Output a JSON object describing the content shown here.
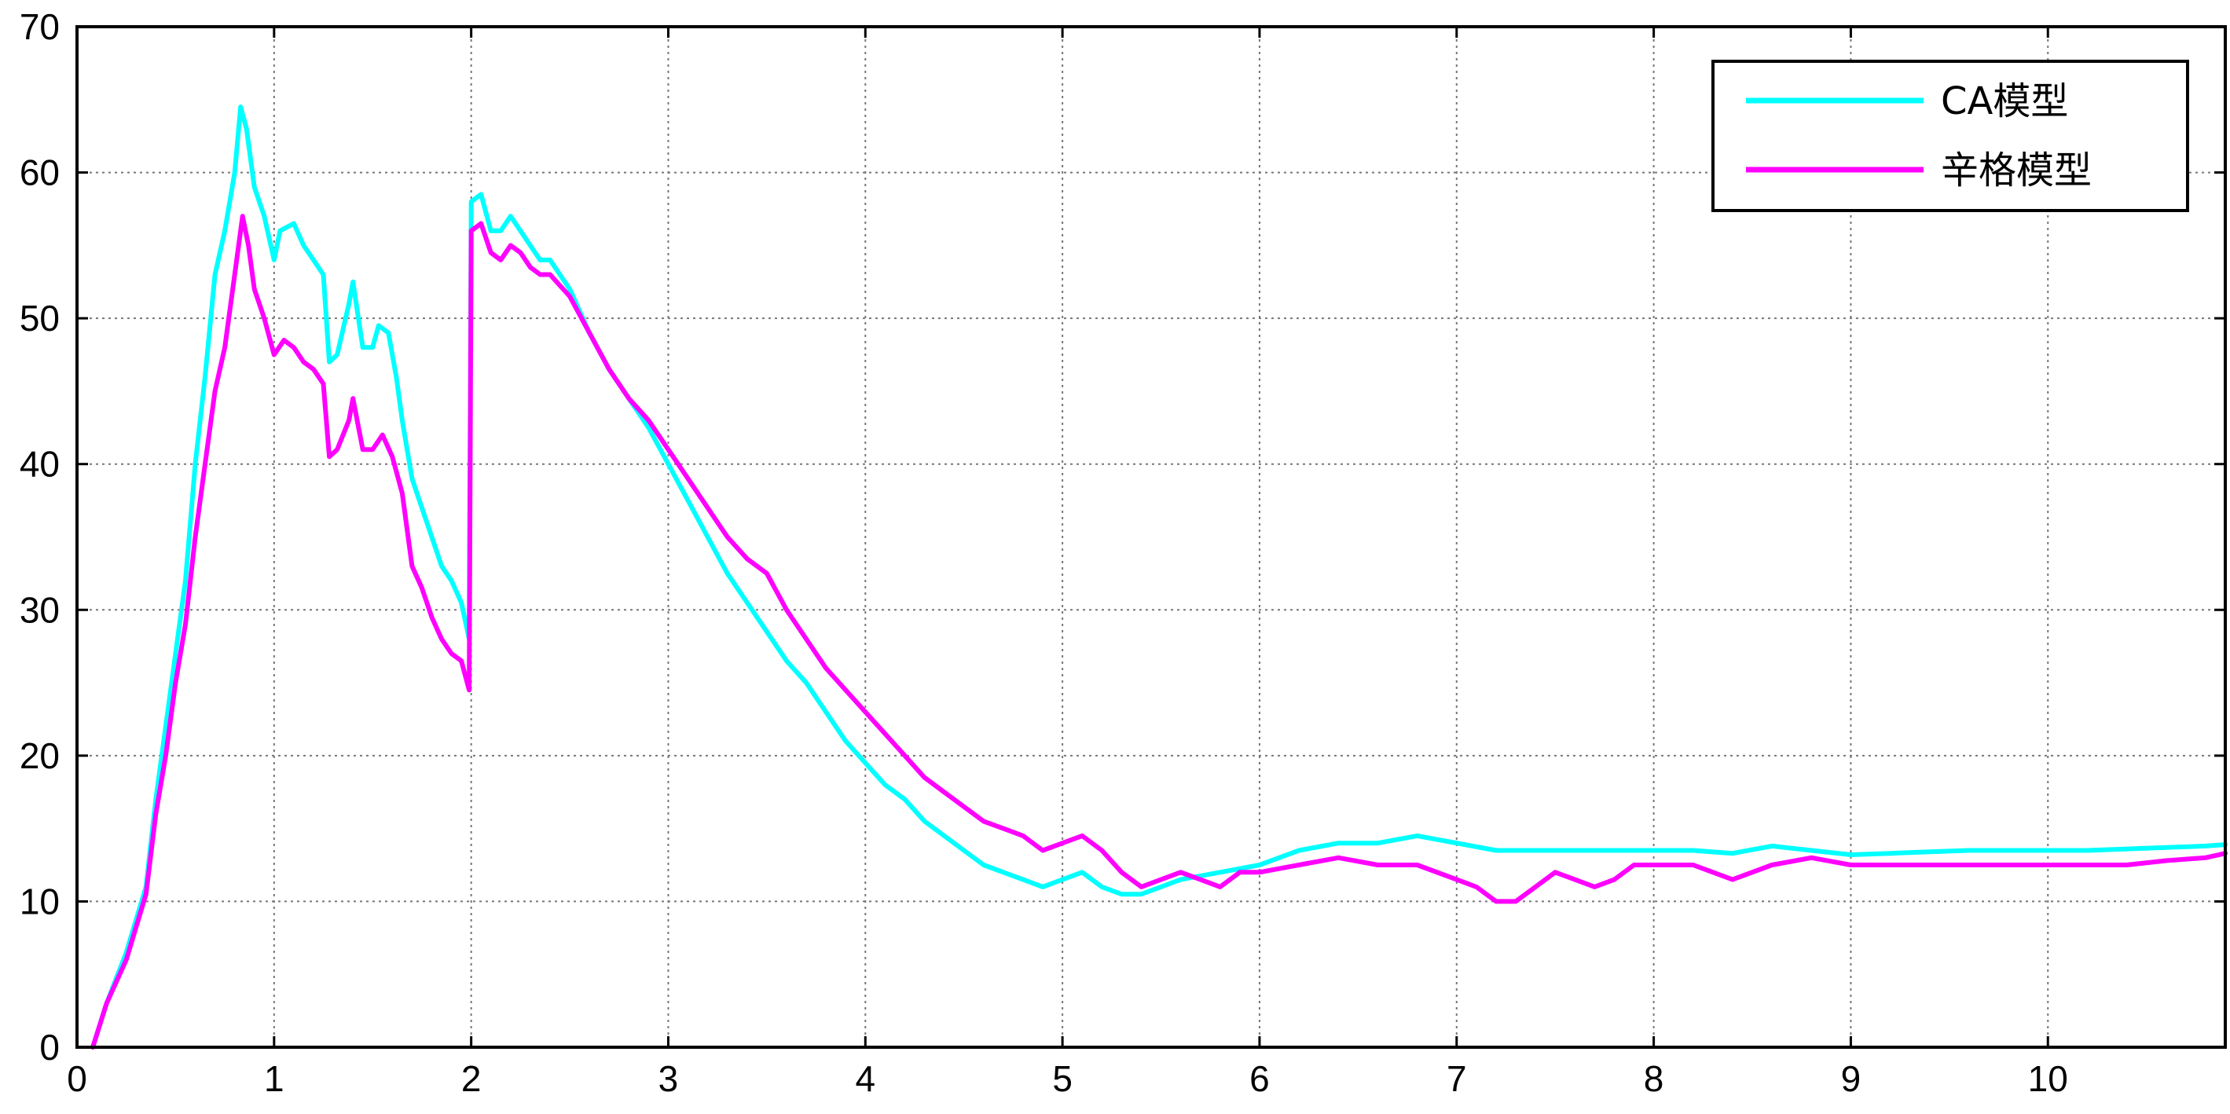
{
  "chart_data": {
    "type": "line",
    "title": "",
    "xlabel": "",
    "ylabel": "",
    "xlim": [
      0,
      10.9
    ],
    "ylim": [
      0,
      70
    ],
    "grid": true,
    "legend_position": "top-right",
    "x_ticks": [
      0,
      1,
      2,
      3,
      4,
      5,
      6,
      7,
      8,
      9,
      10
    ],
    "y_ticks": [
      0,
      10,
      20,
      30,
      40,
      50,
      60,
      70
    ],
    "series": [
      {
        "name": "CA模型",
        "color": "#00ffff",
        "points": [
          [
            0.08,
            0
          ],
          [
            0.15,
            3
          ],
          [
            0.25,
            6.5
          ],
          [
            0.35,
            11
          ],
          [
            0.4,
            17
          ],
          [
            0.45,
            22
          ],
          [
            0.5,
            27
          ],
          [
            0.55,
            32
          ],
          [
            0.6,
            40
          ],
          [
            0.65,
            46
          ],
          [
            0.7,
            53
          ],
          [
            0.75,
            56
          ],
          [
            0.8,
            60
          ],
          [
            0.83,
            64.5
          ],
          [
            0.86,
            63
          ],
          [
            0.9,
            59
          ],
          [
            0.95,
            57
          ],
          [
            1.0,
            54
          ],
          [
            1.03,
            56
          ],
          [
            1.1,
            56.5
          ],
          [
            1.15,
            55
          ],
          [
            1.2,
            54
          ],
          [
            1.25,
            53
          ],
          [
            1.28,
            47
          ],
          [
            1.32,
            47.5
          ],
          [
            1.38,
            51
          ],
          [
            1.4,
            52.5
          ],
          [
            1.45,
            48
          ],
          [
            1.5,
            48
          ],
          [
            1.53,
            49.5
          ],
          [
            1.58,
            49
          ],
          [
            1.62,
            46
          ],
          [
            1.65,
            43
          ],
          [
            1.7,
            39
          ],
          [
            1.75,
            37
          ],
          [
            1.8,
            35
          ],
          [
            1.85,
            33
          ],
          [
            1.9,
            32
          ],
          [
            1.95,
            30.5
          ],
          [
            1.99,
            28
          ],
          [
            2.0,
            58
          ],
          [
            2.05,
            58.5
          ],
          [
            2.1,
            56
          ],
          [
            2.15,
            56
          ],
          [
            2.2,
            57
          ],
          [
            2.25,
            56
          ],
          [
            2.3,
            55
          ],
          [
            2.35,
            54
          ],
          [
            2.4,
            54
          ],
          [
            2.5,
            52
          ],
          [
            2.6,
            49
          ],
          [
            2.7,
            46.5
          ],
          [
            2.8,
            44.5
          ],
          [
            2.9,
            42.5
          ],
          [
            3.0,
            40
          ],
          [
            3.1,
            37.5
          ],
          [
            3.2,
            35
          ],
          [
            3.3,
            32.5
          ],
          [
            3.4,
            30.5
          ],
          [
            3.5,
            28.5
          ],
          [
            3.6,
            26.5
          ],
          [
            3.7,
            25
          ],
          [
            3.8,
            23
          ],
          [
            3.9,
            21
          ],
          [
            4.0,
            19.5
          ],
          [
            4.1,
            18
          ],
          [
            4.2,
            17
          ],
          [
            4.3,
            15.5
          ],
          [
            4.4,
            14.5
          ],
          [
            4.5,
            13.5
          ],
          [
            4.6,
            12.5
          ],
          [
            4.7,
            12
          ],
          [
            4.8,
            11.5
          ],
          [
            4.9,
            11
          ],
          [
            5.0,
            11.5
          ],
          [
            5.1,
            12
          ],
          [
            5.2,
            11
          ],
          [
            5.3,
            10.5
          ],
          [
            5.4,
            10.5
          ],
          [
            5.5,
            11
          ],
          [
            5.6,
            11.5
          ],
          [
            5.8,
            12
          ],
          [
            6.0,
            12.5
          ],
          [
            6.2,
            13.5
          ],
          [
            6.4,
            14
          ],
          [
            6.6,
            14
          ],
          [
            6.8,
            14.5
          ],
          [
            7.0,
            14
          ],
          [
            7.2,
            13.5
          ],
          [
            7.4,
            13.5
          ],
          [
            7.6,
            13.5
          ],
          [
            7.8,
            13.5
          ],
          [
            8.0,
            13.5
          ],
          [
            8.2,
            13.5
          ],
          [
            8.4,
            13.3
          ],
          [
            8.6,
            13.8
          ],
          [
            8.8,
            13.5
          ],
          [
            9.0,
            13.2
          ],
          [
            9.2,
            13.3
          ],
          [
            9.4,
            13.4
          ],
          [
            9.6,
            13.5
          ],
          [
            9.8,
            13.5
          ],
          [
            10.0,
            13.5
          ],
          [
            10.2,
            13.5
          ],
          [
            10.4,
            13.6
          ],
          [
            10.6,
            13.7
          ],
          [
            10.8,
            13.8
          ],
          [
            10.9,
            13.9
          ]
        ]
      },
      {
        "name": "辛格模型",
        "color": "#ff00ff",
        "points": [
          [
            0.08,
            0
          ],
          [
            0.15,
            3
          ],
          [
            0.25,
            6
          ],
          [
            0.35,
            10.5
          ],
          [
            0.4,
            16
          ],
          [
            0.45,
            20
          ],
          [
            0.5,
            25
          ],
          [
            0.55,
            29
          ],
          [
            0.6,
            35
          ],
          [
            0.65,
            40
          ],
          [
            0.7,
            45
          ],
          [
            0.75,
            48
          ],
          [
            0.8,
            53
          ],
          [
            0.84,
            57
          ],
          [
            0.87,
            55
          ],
          [
            0.9,
            52
          ],
          [
            0.95,
            50
          ],
          [
            1.0,
            47.5
          ],
          [
            1.05,
            48.5
          ],
          [
            1.1,
            48
          ],
          [
            1.15,
            47
          ],
          [
            1.2,
            46.5
          ],
          [
            1.25,
            45.5
          ],
          [
            1.28,
            40.5
          ],
          [
            1.32,
            41
          ],
          [
            1.38,
            43
          ],
          [
            1.4,
            44.5
          ],
          [
            1.45,
            41
          ],
          [
            1.5,
            41
          ],
          [
            1.55,
            42
          ],
          [
            1.6,
            40.5
          ],
          [
            1.65,
            38
          ],
          [
            1.7,
            33
          ],
          [
            1.75,
            31.5
          ],
          [
            1.8,
            29.5
          ],
          [
            1.85,
            28
          ],
          [
            1.9,
            27
          ],
          [
            1.95,
            26.5
          ],
          [
            1.99,
            24.5
          ],
          [
            2.0,
            56
          ],
          [
            2.05,
            56.5
          ],
          [
            2.1,
            54.5
          ],
          [
            2.15,
            54
          ],
          [
            2.2,
            55
          ],
          [
            2.25,
            54.5
          ],
          [
            2.3,
            53.5
          ],
          [
            2.35,
            53
          ],
          [
            2.4,
            53
          ],
          [
            2.5,
            51.5
          ],
          [
            2.6,
            49
          ],
          [
            2.7,
            46.5
          ],
          [
            2.8,
            44.5
          ],
          [
            2.9,
            43
          ],
          [
            3.0,
            41
          ],
          [
            3.1,
            39
          ],
          [
            3.2,
            37
          ],
          [
            3.3,
            35
          ],
          [
            3.4,
            33.5
          ],
          [
            3.5,
            32.5
          ],
          [
            3.6,
            30
          ],
          [
            3.7,
            28
          ],
          [
            3.8,
            26
          ],
          [
            3.9,
            24.5
          ],
          [
            4.0,
            23
          ],
          [
            4.1,
            21.5
          ],
          [
            4.2,
            20
          ],
          [
            4.3,
            18.5
          ],
          [
            4.4,
            17.5
          ],
          [
            4.5,
            16.5
          ],
          [
            4.6,
            15.5
          ],
          [
            4.7,
            15
          ],
          [
            4.8,
            14.5
          ],
          [
            4.9,
            13.5
          ],
          [
            5.0,
            14
          ],
          [
            5.1,
            14.5
          ],
          [
            5.2,
            13.5
          ],
          [
            5.3,
            12
          ],
          [
            5.4,
            11
          ],
          [
            5.5,
            11.5
          ],
          [
            5.6,
            12
          ],
          [
            5.8,
            11
          ],
          [
            5.9,
            12
          ],
          [
            6.0,
            12
          ],
          [
            6.2,
            12.5
          ],
          [
            6.4,
            13
          ],
          [
            6.6,
            12.5
          ],
          [
            6.8,
            12.5
          ],
          [
            7.0,
            11.5
          ],
          [
            7.1,
            11
          ],
          [
            7.2,
            10
          ],
          [
            7.3,
            10
          ],
          [
            7.4,
            11
          ],
          [
            7.5,
            12
          ],
          [
            7.6,
            11.5
          ],
          [
            7.7,
            11
          ],
          [
            7.8,
            11.5
          ],
          [
            7.9,
            12.5
          ],
          [
            8.0,
            12.5
          ],
          [
            8.2,
            12.5
          ],
          [
            8.4,
            11.5
          ],
          [
            8.6,
            12.5
          ],
          [
            8.8,
            13
          ],
          [
            9.0,
            12.5
          ],
          [
            9.2,
            12.5
          ],
          [
            9.4,
            12.5
          ],
          [
            9.6,
            12.5
          ],
          [
            9.8,
            12.5
          ],
          [
            10.0,
            12.5
          ],
          [
            10.2,
            12.5
          ],
          [
            10.4,
            12.5
          ],
          [
            10.6,
            12.8
          ],
          [
            10.8,
            13
          ],
          [
            10.9,
            13.3
          ]
        ]
      }
    ]
  }
}
